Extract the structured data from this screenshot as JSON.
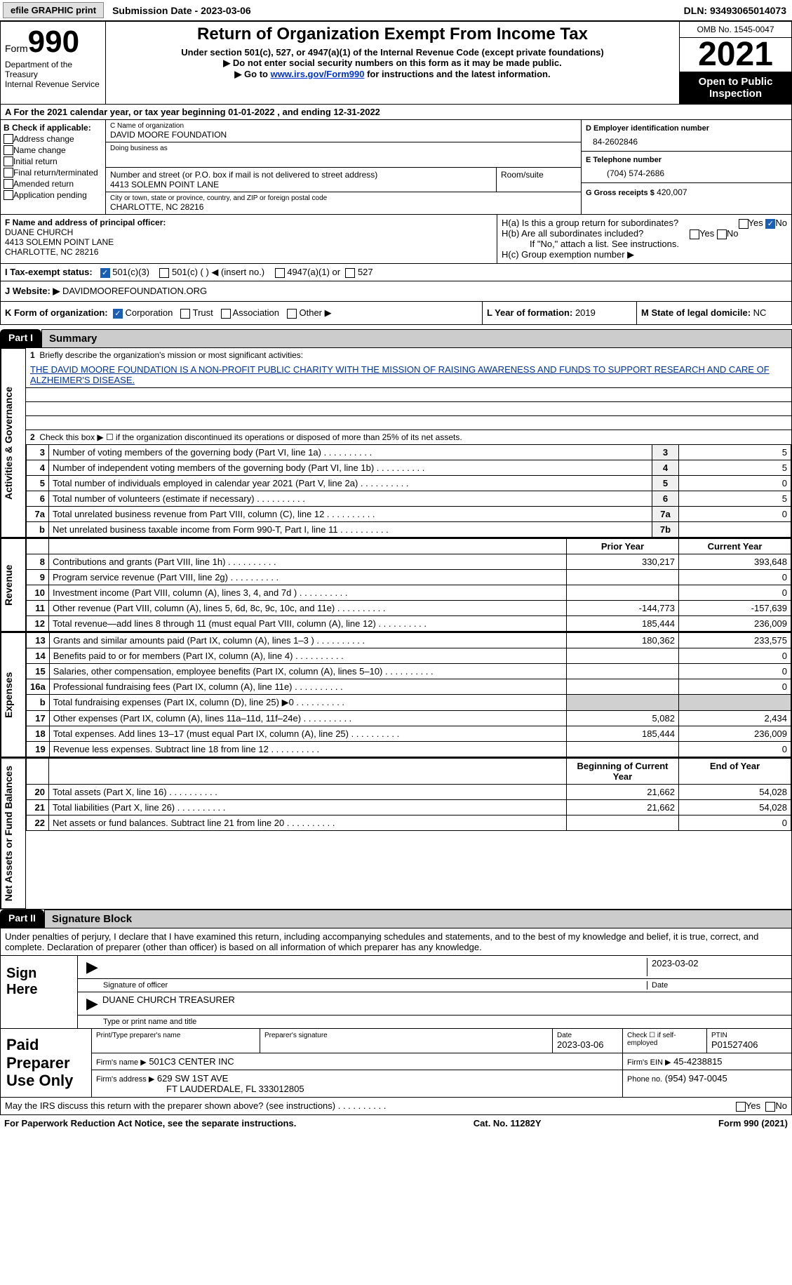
{
  "colors": {
    "black": "#000000",
    "white": "#ffffff",
    "grey_hdr": "#cccccc",
    "grey_cell": "#d0d0d0",
    "btn_bg": "#e0e0e0",
    "check_blue": "#1a5fb4",
    "link_blue": "#0033cc"
  },
  "topbar": {
    "efile": "efile GRAPHIC print",
    "subdate": "Submission Date - 2023-03-06",
    "dln": "DLN: 93493065014073"
  },
  "header": {
    "form_word": "Form",
    "form_num": "990",
    "title": "Return of Organization Exempt From Income Tax",
    "subtitle": "Under section 501(c), 527, or 4947(a)(1) of the Internal Revenue Code (except private foundations)",
    "note1": "▶ Do not enter social security numbers on this form as it may be made public.",
    "note2_pre": "▶ Go to ",
    "note2_link": "www.irs.gov/Form990",
    "note2_post": " for instructions and the latest information.",
    "dept": "Department of the Treasury",
    "irs": "Internal Revenue Service",
    "omb": "OMB No. 1545-0047",
    "year": "2021",
    "otpi": "Open to Public Inspection"
  },
  "periodA": "A For the 2021 calendar year, or tax year beginning 01-01-2022   , and ending 12-31-2022",
  "secB": {
    "label": "B Check if applicable:",
    "items": [
      "Address change",
      "Name change",
      "Initial return",
      "Final return/terminated",
      "Amended return",
      "Application pending"
    ],
    "C_lbl": "C Name of organization",
    "C_val": "DAVID MOORE FOUNDATION",
    "dba_lbl": "Doing business as",
    "dba_val": "",
    "addr_lbl": "Number and street (or P.O. box if mail is not delivered to street address)",
    "addr_val": "4413 SOLEMN POINT LANE",
    "room_lbl": "Room/suite",
    "city_lbl": "City or town, state or province, country, and ZIP or foreign postal code",
    "city_val": "CHARLOTTE, NC  28216",
    "D_lbl": "D Employer identification number",
    "D_val": "84-2602846",
    "E_lbl": "E Telephone number",
    "E_val": "(704) 574-2686",
    "G_lbl": "G Gross receipts $",
    "G_val": "420,007"
  },
  "secF": {
    "F_lbl": "F Name and address of principal officer:",
    "F_name": "DUANE CHURCH",
    "F_addr1": "4413 SOLEMN POINT LANE",
    "F_addr2": "CHARLOTTE, NC  28216",
    "Ha": "H(a)  Is this a group return for subordinates?",
    "Hb": "H(b)  Are all subordinates included?",
    "Hb_note": "If \"No,\" attach a list. See instructions.",
    "Hc": "H(c)  Group exemption number ▶",
    "yes": "Yes",
    "no": "No"
  },
  "secI": {
    "lbl": "I   Tax-exempt status:",
    "opt1": "501(c)(3)",
    "opt2": "501(c) (  ) ◀ (insert no.)",
    "opt3": "4947(a)(1) or",
    "opt4": "527"
  },
  "secJ": {
    "lbl": "J   Website: ▶",
    "val": "DAVIDMOOREFOUNDATION.ORG"
  },
  "secK": {
    "lbl": "K Form of organization:",
    "opts": [
      "Corporation",
      "Trust",
      "Association",
      "Other ▶"
    ],
    "L_lbl": "L Year of formation:",
    "L_val": "2019",
    "M_lbl": "M State of legal domicile:",
    "M_val": "NC"
  },
  "part1": {
    "tag": "Part I",
    "title": "Summary",
    "q1_lbl": "Briefly describe the organization's mission or most significant activities:",
    "q1_val": "THE DAVID MOORE FOUNDATION IS A NON-PROFIT PUBLIC CHARITY WITH THE MISSION OF RAISING AWARENESS AND FUNDS TO SUPPORT RESEARCH AND CARE OF ALZHEIMER'S DISEASE.",
    "q2": "Check this box ▶ ☐ if the organization discontinued its operations or disposed of more than 25% of its net assets.",
    "side_ag": "Activities & Governance",
    "side_rev": "Revenue",
    "side_exp": "Expenses",
    "side_na": "Net Assets or Fund Balances",
    "rows_gov": [
      {
        "n": "3",
        "d": "Number of voting members of the governing body (Part VI, line 1a)",
        "box": "3",
        "v": "5"
      },
      {
        "n": "4",
        "d": "Number of independent voting members of the governing body (Part VI, line 1b)",
        "box": "4",
        "v": "5"
      },
      {
        "n": "5",
        "d": "Total number of individuals employed in calendar year 2021 (Part V, line 2a)",
        "box": "5",
        "v": "0"
      },
      {
        "n": "6",
        "d": "Total number of volunteers (estimate if necessary)",
        "box": "6",
        "v": "5"
      },
      {
        "n": "7a",
        "d": "Total unrelated business revenue from Part VIII, column (C), line 12",
        "box": "7a",
        "v": "0"
      },
      {
        "n": "b",
        "d": "Net unrelated business taxable income from Form 990-T, Part I, line 11",
        "box": "7b",
        "v": ""
      }
    ],
    "col_prior": "Prior Year",
    "col_curr": "Current Year",
    "rows_rev": [
      {
        "n": "8",
        "d": "Contributions and grants (Part VIII, line 1h)",
        "p": "330,217",
        "c": "393,648"
      },
      {
        "n": "9",
        "d": "Program service revenue (Part VIII, line 2g)",
        "p": "",
        "c": "0"
      },
      {
        "n": "10",
        "d": "Investment income (Part VIII, column (A), lines 3, 4, and 7d )",
        "p": "",
        "c": "0"
      },
      {
        "n": "11",
        "d": "Other revenue (Part VIII, column (A), lines 5, 6d, 8c, 9c, 10c, and 11e)",
        "p": "-144,773",
        "c": "-157,639"
      },
      {
        "n": "12",
        "d": "Total revenue—add lines 8 through 11 (must equal Part VIII, column (A), line 12)",
        "p": "185,444",
        "c": "236,009"
      }
    ],
    "rows_exp": [
      {
        "n": "13",
        "d": "Grants and similar amounts paid (Part IX, column (A), lines 1–3 )",
        "p": "180,362",
        "c": "233,575"
      },
      {
        "n": "14",
        "d": "Benefits paid to or for members (Part IX, column (A), line 4)",
        "p": "",
        "c": "0"
      },
      {
        "n": "15",
        "d": "Salaries, other compensation, employee benefits (Part IX, column (A), lines 5–10)",
        "p": "",
        "c": "0"
      },
      {
        "n": "16a",
        "d": "Professional fundraising fees (Part IX, column (A), line 11e)",
        "p": "",
        "c": "0"
      },
      {
        "n": "b",
        "d": "Total fundraising expenses (Part IX, column (D), line 25) ▶0",
        "p": "grey",
        "c": "grey"
      },
      {
        "n": "17",
        "d": "Other expenses (Part IX, column (A), lines 11a–11d, 11f–24e)",
        "p": "5,082",
        "c": "2,434"
      },
      {
        "n": "18",
        "d": "Total expenses. Add lines 13–17 (must equal Part IX, column (A), line 25)",
        "p": "185,444",
        "c": "236,009"
      },
      {
        "n": "19",
        "d": "Revenue less expenses. Subtract line 18 from line 12",
        "p": "",
        "c": "0"
      }
    ],
    "col_boy": "Beginning of Current Year",
    "col_eoy": "End of Year",
    "rows_na": [
      {
        "n": "20",
        "d": "Total assets (Part X, line 16)",
        "p": "21,662",
        "c": "54,028"
      },
      {
        "n": "21",
        "d": "Total liabilities (Part X, line 26)",
        "p": "21,662",
        "c": "54,028"
      },
      {
        "n": "22",
        "d": "Net assets or fund balances. Subtract line 21 from line 20",
        "p": "",
        "c": "0"
      }
    ]
  },
  "part2": {
    "tag": "Part II",
    "title": "Signature Block",
    "decl": "Under penalties of perjury, I declare that I have examined this return, including accompanying schedules and statements, and to the best of my knowledge and belief, it is true, correct, and complete. Declaration of preparer (other than officer) is based on all information of which preparer has any knowledge.",
    "sign_here": "Sign Here",
    "sig_officer": "Signature of officer",
    "sig_date": "2023-03-02",
    "date_lbl": "Date",
    "typed_name": "DUANE CHURCH  TREASURER",
    "typed_lbl": "Type or print name and title"
  },
  "paid": {
    "title": "Paid Preparer Use Only",
    "pt_name_lbl": "Print/Type preparer's name",
    "pt_sig_lbl": "Preparer's signature",
    "pt_date_lbl": "Date",
    "pt_date": "2023-03-06",
    "pt_check_lbl": "Check ☐ if self-employed",
    "ptin_lbl": "PTIN",
    "ptin": "P01527406",
    "firm_name_lbl": "Firm's name    ▶",
    "firm_name": "501C3 CENTER INC",
    "firm_ein_lbl": "Firm's EIN ▶",
    "firm_ein": "45-4238815",
    "firm_addr_lbl": "Firm's address ▶",
    "firm_addr1": "629 SW 1ST AVE",
    "firm_addr2": "FT LAUDERDALE, FL  333012805",
    "phone_lbl": "Phone no.",
    "phone": "(954) 947-0045"
  },
  "footer": {
    "discuss": "May the IRS discuss this return with the preparer shown above? (see instructions)",
    "yes": "Yes",
    "no": "No",
    "pra": "For Paperwork Reduction Act Notice, see the separate instructions.",
    "cat": "Cat. No. 11282Y",
    "formref": "Form 990 (2021)"
  }
}
